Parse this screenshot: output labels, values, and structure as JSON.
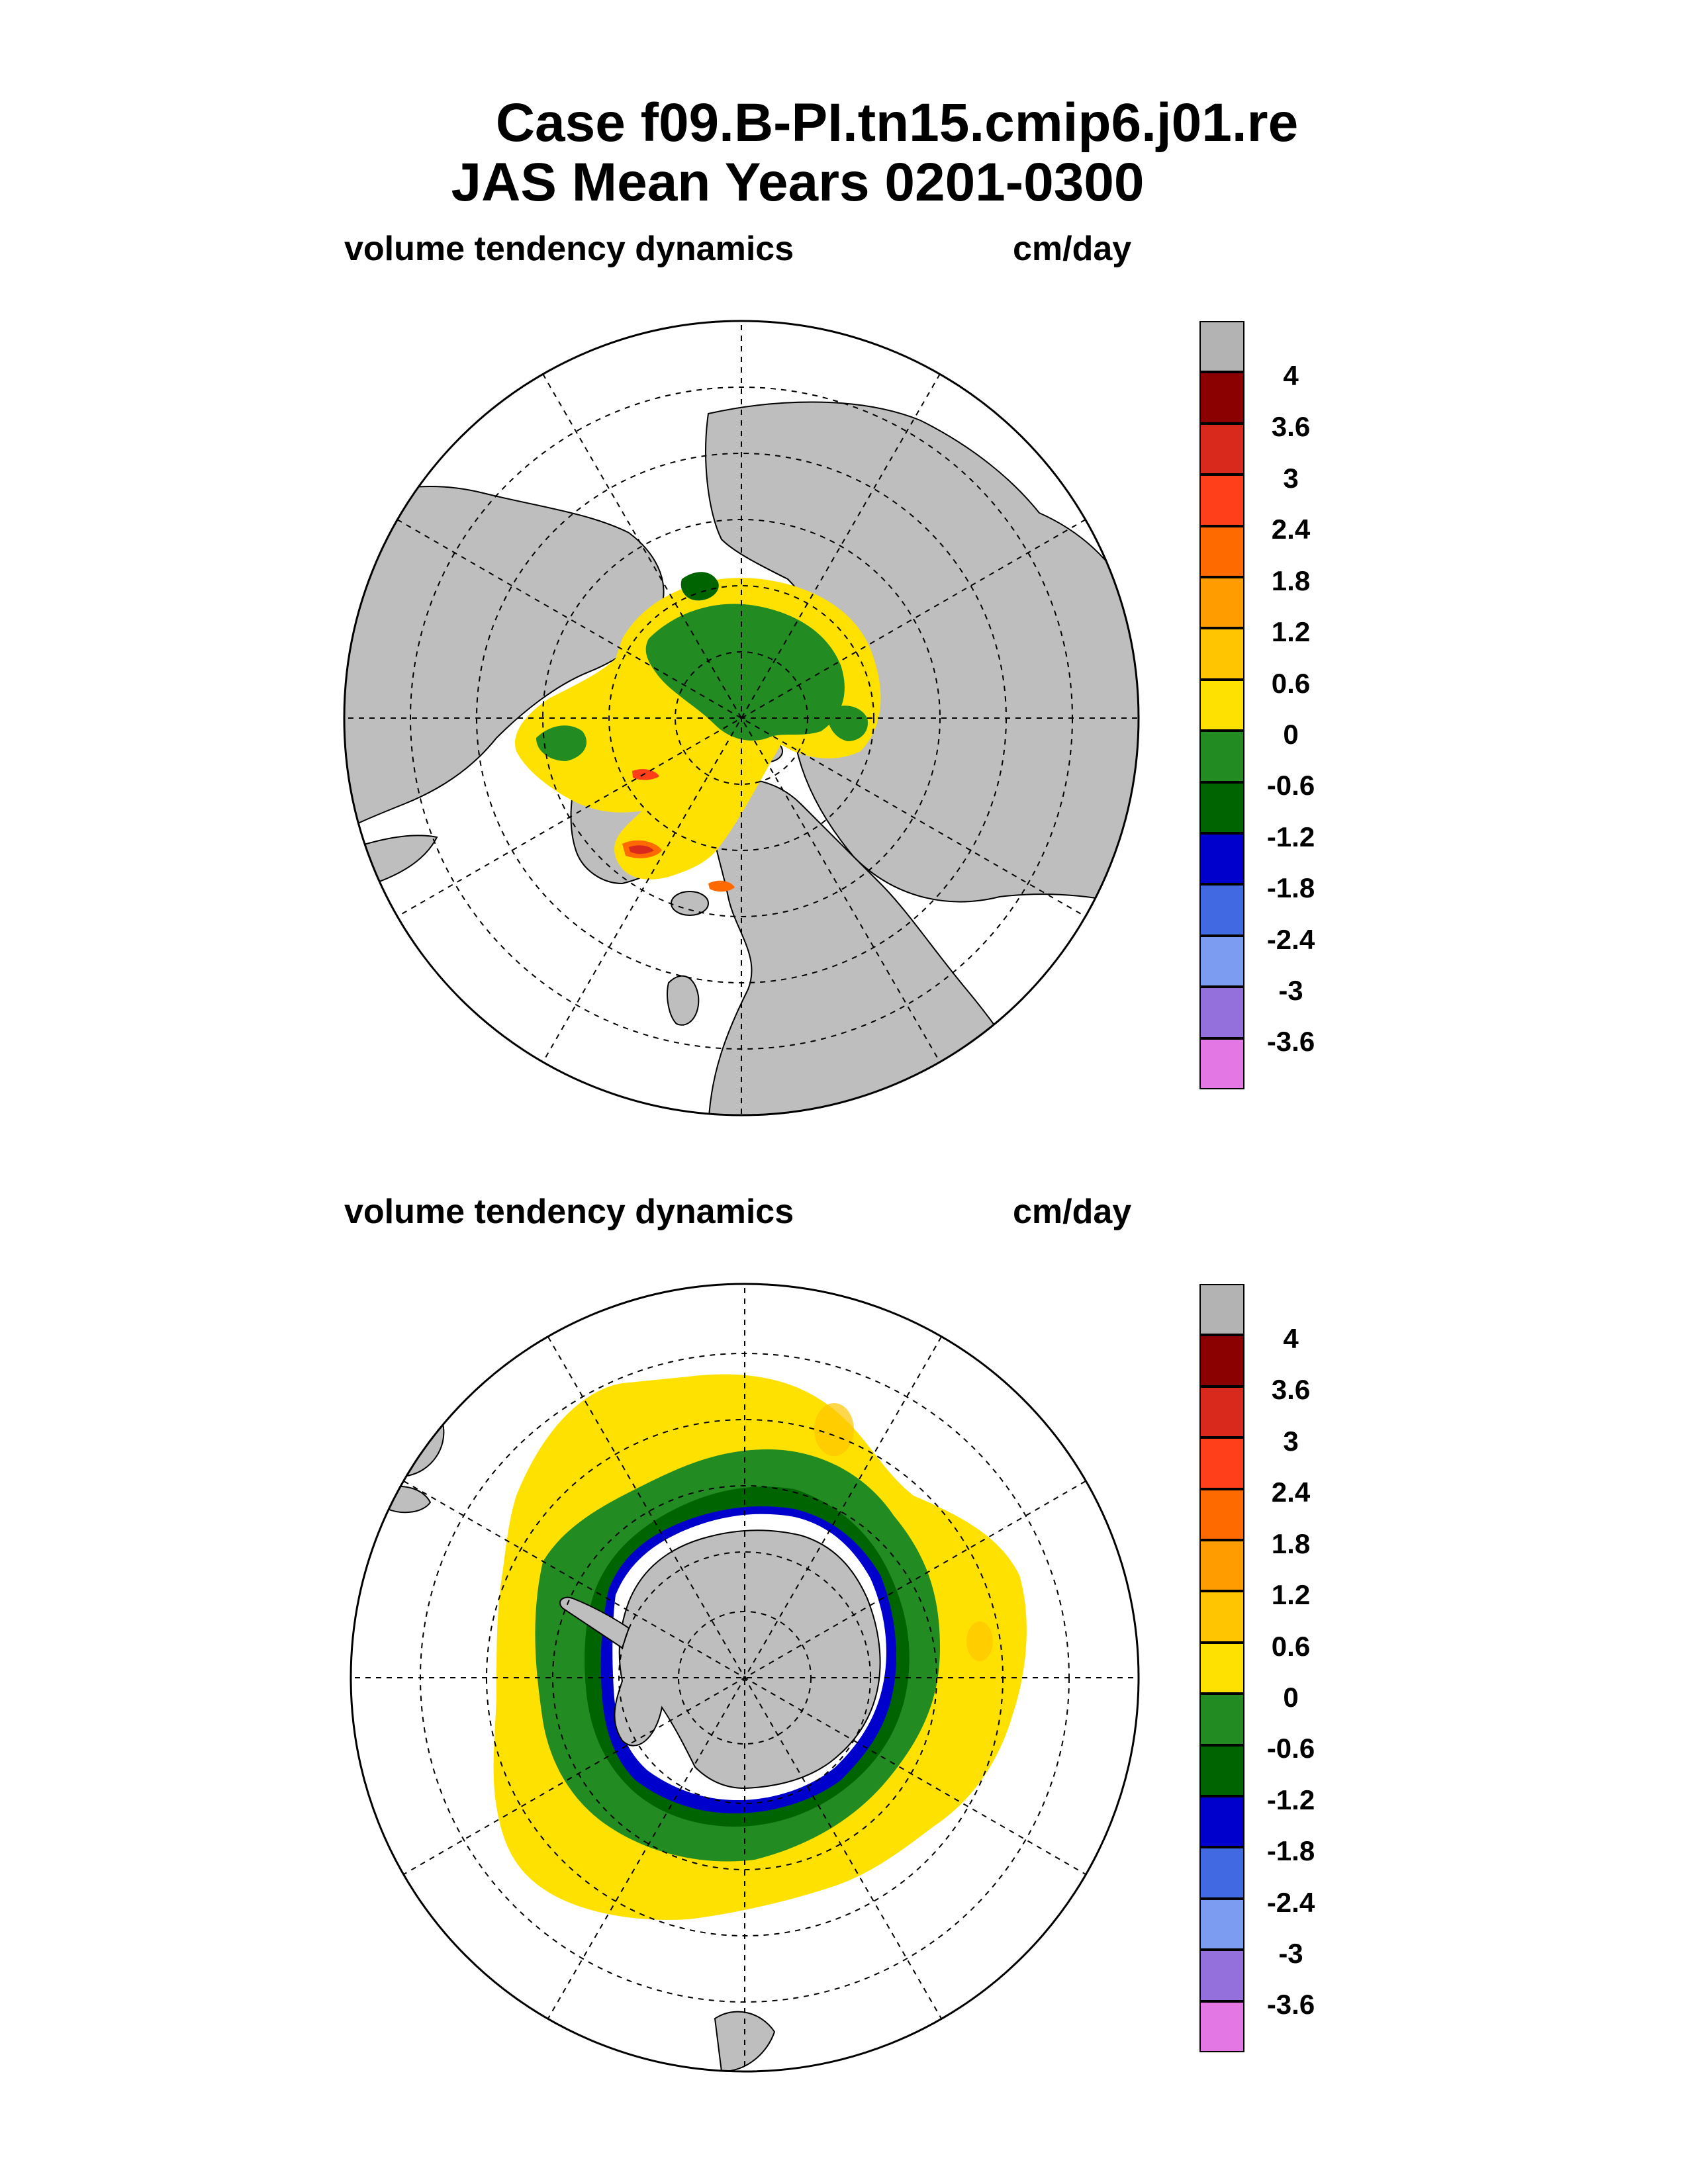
{
  "title": {
    "line1": "Case f09.B-PI.tn15.cmip6.j01.re",
    "line2": "JAS Mean   Years 0201-0300"
  },
  "panels": [
    {
      "subtitle": "volume tendency dynamics",
      "units": "cm/day",
      "hemisphere": "north"
    },
    {
      "subtitle": "volume tendency dynamics",
      "units": "cm/day",
      "hemisphere": "south"
    }
  ],
  "colorbar": {
    "labels": [
      "4",
      "3.6",
      "3",
      "2.4",
      "1.8",
      "1.2",
      "0.6",
      "0",
      "-0.6",
      "-1.2",
      "-1.8",
      "-2.4",
      "-3",
      "-3.6"
    ],
    "colors": [
      "#b3b3b3",
      "#8b0000",
      "#d9291c",
      "#ff3f1a",
      "#ff6a00",
      "#ff9d00",
      "#ffc500",
      "#ffe100",
      "#228b22",
      "#006400",
      "#0000cd",
      "#4169e1",
      "#7b9cf0",
      "#9370db",
      "#e377e3"
    ]
  },
  "colors": {
    "land": "#bebebe",
    "ocean": "#ffffff",
    "grid": "#000000"
  }
}
